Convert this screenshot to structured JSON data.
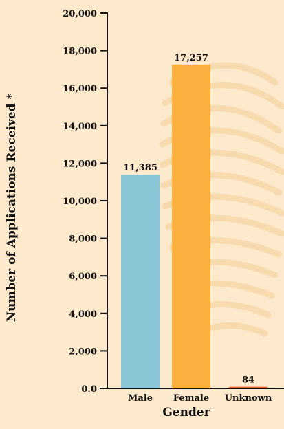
{
  "chart_data": {
    "type": "bar",
    "categories": [
      "Male",
      "Female",
      "Unknown"
    ],
    "values": [
      11385,
      17257,
      84
    ],
    "value_labels": [
      "11,385",
      "17,257",
      "84"
    ],
    "colors": [
      "#8ac6d6",
      "#fbb040",
      "#e85d2f"
    ],
    "xlabel": "Gender",
    "ylabel": "Number of Applications Received *",
    "ylim": [
      0,
      20000
    ],
    "yticks": [
      0,
      2000,
      4000,
      6000,
      8000,
      10000,
      12000,
      14000,
      16000,
      18000,
      20000
    ],
    "ytick_labels": [
      "0.0",
      "2,000",
      "4,000",
      "6,000",
      "8,000",
      "10,000",
      "12,000",
      "14,000",
      "16,000",
      "18,000",
      "20,000"
    ],
    "grid": false,
    "background": "#fde9cc",
    "decoration": "faint fingerprint watermark"
  }
}
